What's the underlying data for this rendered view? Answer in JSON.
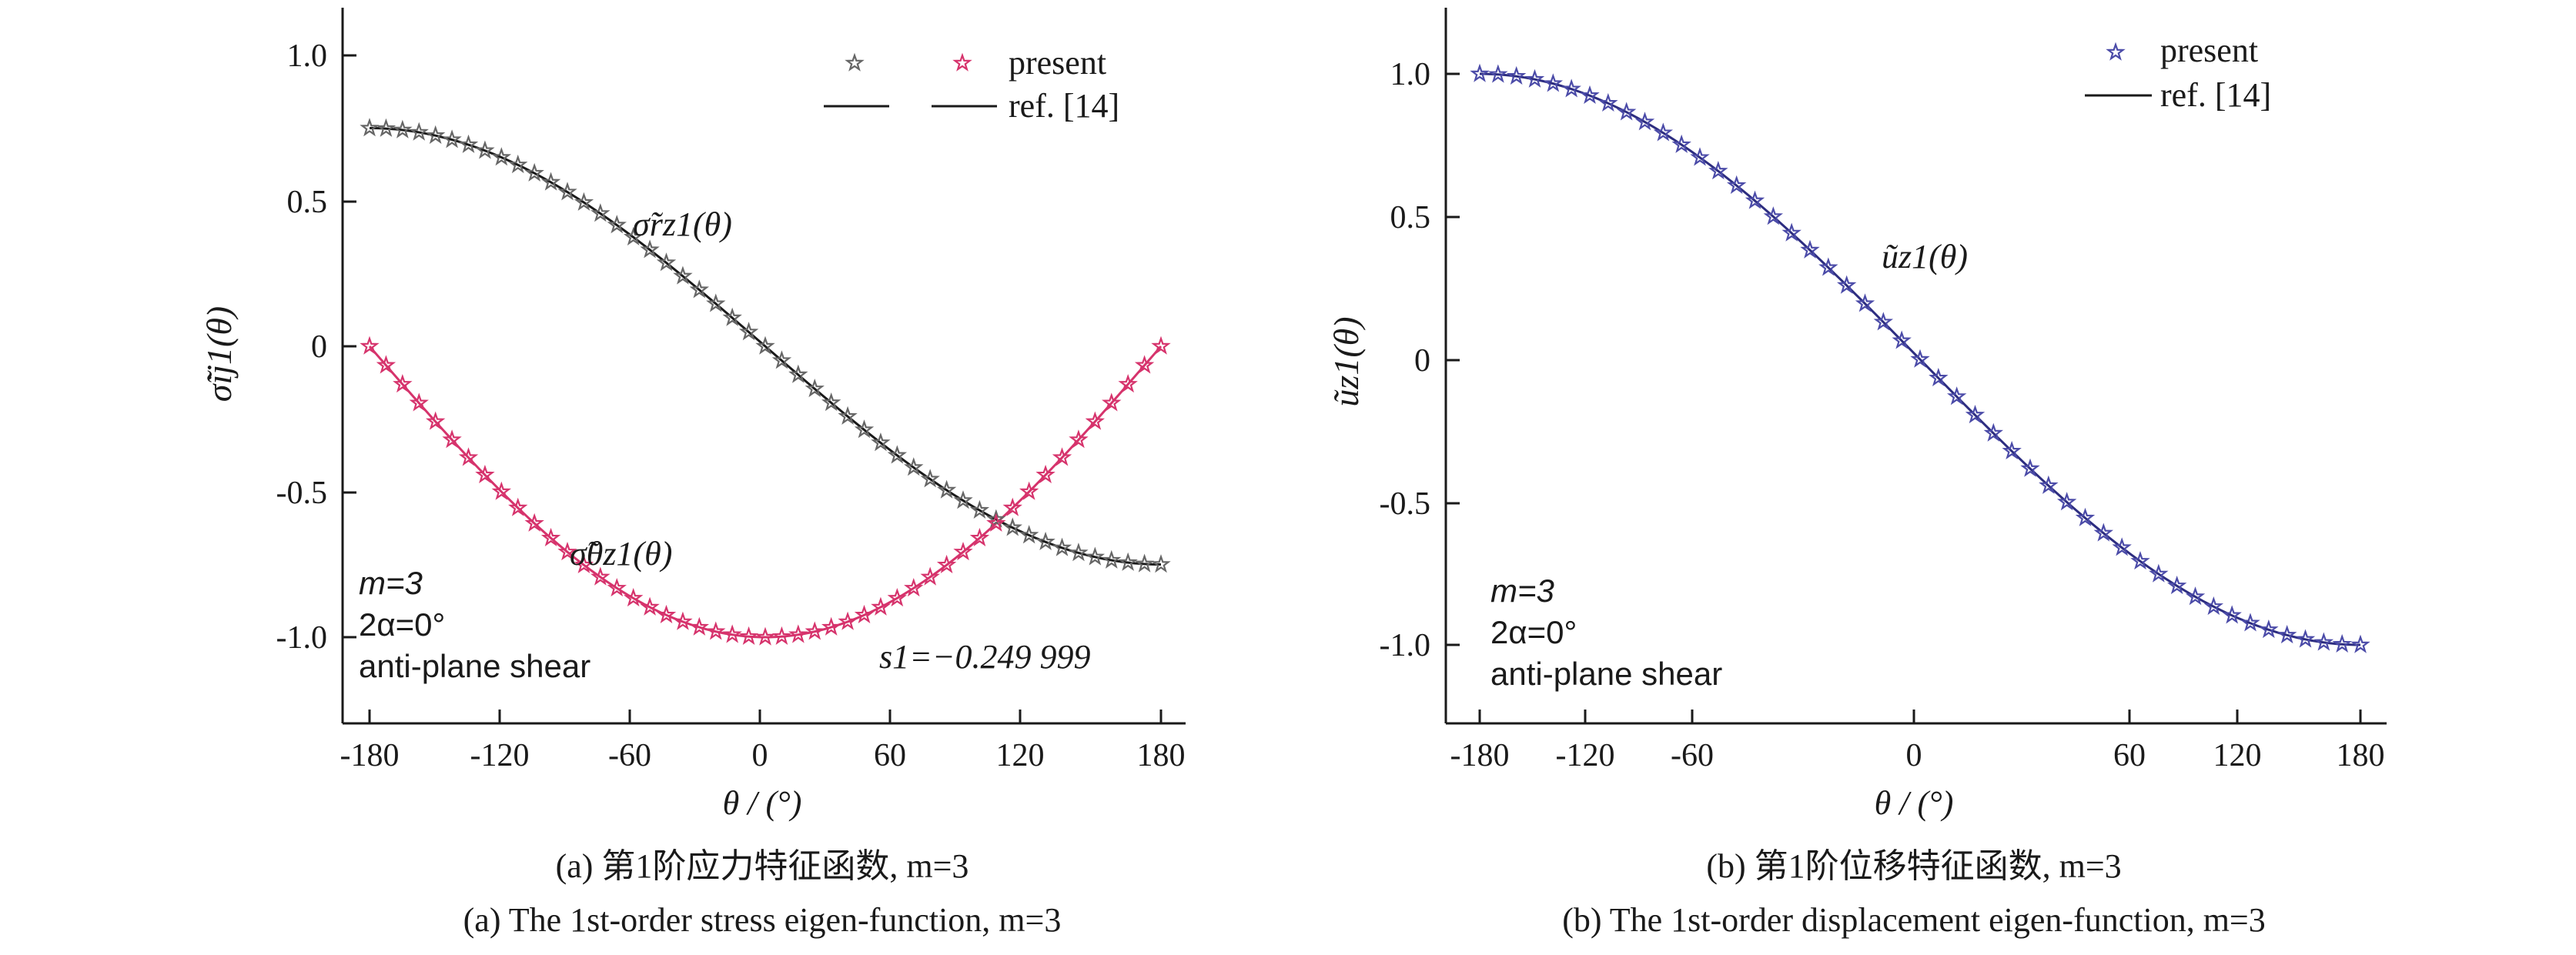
{
  "colors": {
    "axis": "#1a1a1a",
    "ref_line": "#1a1a1a",
    "stress_rz_marker": "#666666",
    "stress_tz_marker": "#d6336c",
    "disp_marker": "#4b4ba8",
    "stress_tz_line": "#d6336c",
    "disp_line": "#2d2d80"
  },
  "chart_data": [
    {
      "type": "line",
      "caption_cn": "(a) 第1阶应力特征函数, m=3",
      "caption_en": "(a) The 1st-order stress eigen-function, m=3",
      "xlabel": "θ / (°)",
      "ylabel": "σ̃ij1(θ)",
      "xlim": [
        -180,
        180
      ],
      "ylim": [
        -1.25,
        1.05
      ],
      "xticks": [
        "-180",
        "-120",
        "-60",
        "0",
        "60",
        "120",
        "180"
      ],
      "yticks": [
        "1.0",
        "0.5",
        "0",
        "-0.5",
        "-1.0"
      ],
      "legend": {
        "position": "top-right",
        "marker_label": "present",
        "line_label": "ref. [14]"
      },
      "annotations": {
        "curve_rz": "σ̃rz1(θ)",
        "curve_tz": "σ̃θz1(θ)",
        "param_m": "m=3",
        "param_alpha": "2α=0°",
        "param_mode": "anti-plane shear",
        "eigenvalue": "s1=−0.249 999"
      },
      "series": [
        {
          "name": "σ̃rz1(θ)",
          "amplitude": 0.75,
          "function": "0.75*cos((θ+180)/2)",
          "range_x": [
            -180,
            180
          ],
          "range_y": [
            0.75,
            -0.75
          ],
          "marker_step": 7.5
        },
        {
          "name": "σ̃θz1(θ)",
          "amplitude": -1.0,
          "function": "-sin((θ+180)/2)",
          "range_x": [
            -180,
            180
          ],
          "range_y": [
            0,
            -1.0
          ],
          "marker_step": 7.5
        }
      ]
    },
    {
      "type": "line",
      "caption_cn": "(b) 第1阶位移特征函数, m=3",
      "caption_en": "(b) The 1st-order displacement eigen-function, m=3",
      "xlabel": "θ / (°)",
      "ylabel": "ũz1(θ)",
      "xlim": [
        -180,
        180
      ],
      "ylim": [
        -1.25,
        1.25
      ],
      "xticks": [
        "-180",
        "-120",
        "-60",
        "0",
        "60",
        "120",
        "180"
      ],
      "yticks": [
        "1.0",
        "0.5",
        "0",
        "-0.5",
        "-1.0"
      ],
      "legend": {
        "position": "top-right",
        "marker_label": "present",
        "line_label": "ref. [14]"
      },
      "annotations": {
        "curve_u": "ũz1(θ)",
        "param_m": "m=3",
        "param_alpha": "2α=0°",
        "param_mode": "anti-plane shear"
      },
      "series": [
        {
          "name": "ũz1(θ)",
          "amplitude": 1.0,
          "function": "cos((θ+180)/2)",
          "range_x": [
            -180,
            180
          ],
          "range_y": [
            1.0,
            -1.0
          ],
          "marker_step": 7.5
        }
      ]
    }
  ]
}
